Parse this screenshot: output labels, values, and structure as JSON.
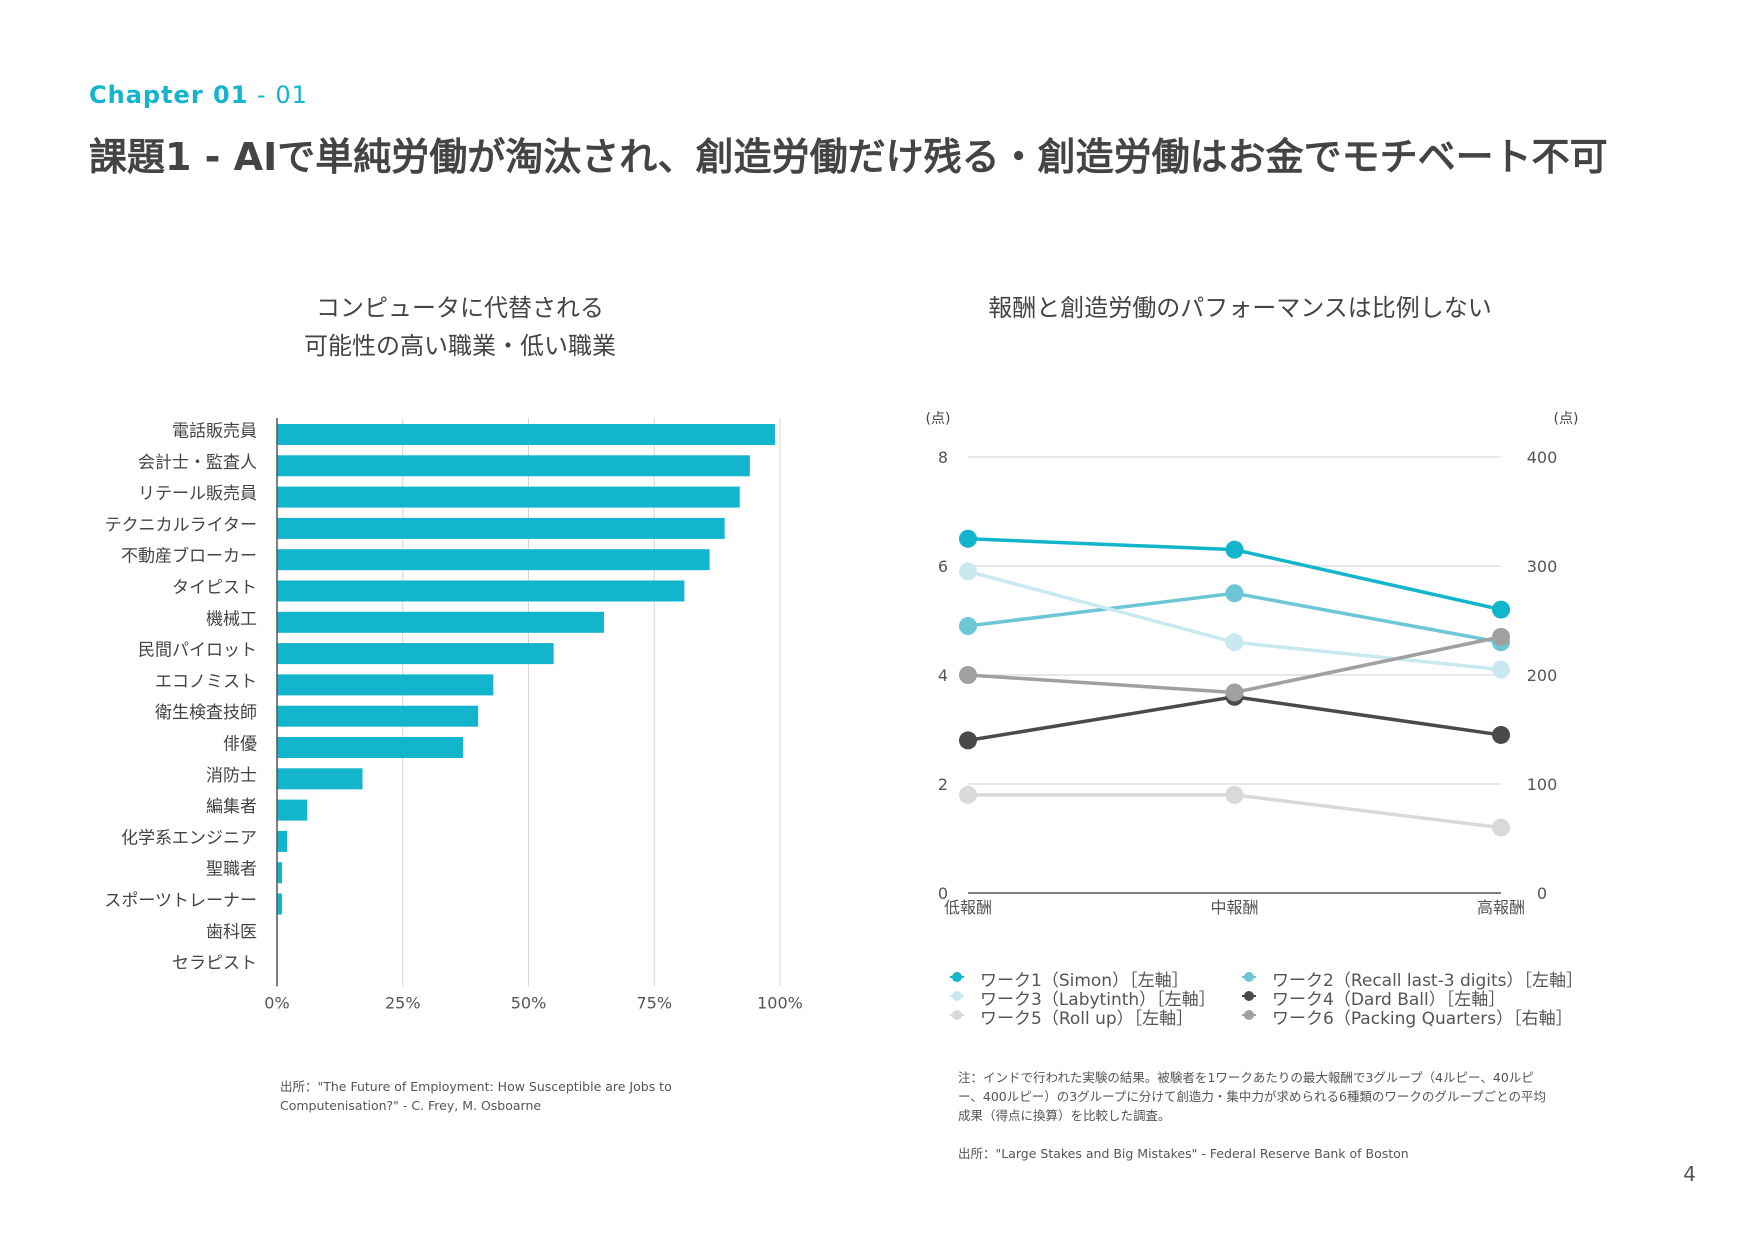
{
  "header": {
    "chapter": "Chapter 01",
    "section": " - 01",
    "title": "課題1 - AIで単純労働が淘汰され、創造労働だけ残る・創造労働はお金でモチベート不可"
  },
  "page_number": "4",
  "colors": {
    "accent": "#12b5cb",
    "bar": "#12b5cb",
    "series": [
      "#12b5cb",
      "#6cc6d6",
      "#c7e9ef",
      "#4a4a4a",
      "#d9d9d9",
      "#a0a0a0"
    ]
  },
  "left_chart": {
    "title_line1": "コンピュータに代替される",
    "title_line2": "可能性の高い職業・低い職業",
    "source": "出所：\"The Future of Employment: How Susceptible are Jobs to Computenisation?\" - C. Frey, M. Osboarne"
  },
  "right_chart": {
    "title": "報酬と創造労働のパフォーマンスは比例しない",
    "note": "注：インドで行われた実験の結果。被験者を1ワークあたりの最大報酬で3グループ（4ルピー、40ルピー、400ルピー）の3グループに分けて創造力・集中力が求められる6種類のワークのグループごとの平均成果（得点に換算）を比較した調査。",
    "source": "出所：\"Large Stakes and Big Mistakes\" - Federal Reserve Bank of Boston",
    "left_unit": "(点)",
    "right_unit": "(点)"
  },
  "chart_data": [
    {
      "type": "bar",
      "orientation": "horizontal",
      "title": "コンピュータに代替される 可能性の高い職業・低い職業",
      "categories": [
        "電話販売員",
        "会計士・監査人",
        "リテール販売員",
        "テクニカルライター",
        "不動産ブローカー",
        "タイピスト",
        "機械工",
        "民間パイロット",
        "エコノミスト",
        "衛生検査技師",
        "俳優",
        "消防士",
        "編集者",
        "化学系エンジニア",
        "聖職者",
        "スポーツトレーナー",
        "歯科医",
        "セラピスト"
      ],
      "values": [
        99,
        94,
        92,
        89,
        86,
        81,
        65,
        55,
        43,
        40,
        37,
        17,
        6,
        2,
        1,
        1,
        0,
        0
      ],
      "xlim": [
        0,
        100
      ],
      "xticks": [
        "0%",
        "25%",
        "50%",
        "75%",
        "100%"
      ],
      "xtick_values": [
        0,
        25,
        50,
        75,
        100
      ],
      "grid": true
    },
    {
      "type": "line",
      "title": "報酬と創造労働のパフォーマンスは比例しない",
      "categories": [
        "低報酬",
        "中報酬",
        "高報酬"
      ],
      "ylim_left": [
        0,
        8
      ],
      "ylim_right": [
        0,
        400
      ],
      "yticks_left": [
        "0",
        "2",
        "4",
        "6",
        "8"
      ],
      "yticks_right": [
        "0",
        "100",
        "200",
        "300",
        "400"
      ],
      "ylabel_left": "(点)",
      "ylabel_right": "(点)",
      "legend_position": "bottom",
      "grid": true,
      "series": [
        {
          "name": "ワーク1（Simon）［左軸］",
          "axis": "left",
          "values": [
            6.5,
            6.3,
            5.2
          ],
          "color": "#12b5cb"
        },
        {
          "name": "ワーク2（Recall last-3 digits）［左軸］",
          "axis": "left",
          "values": [
            4.9,
            5.5,
            4.6
          ],
          "color": "#6cc6d6"
        },
        {
          "name": "ワーク3（Labytinth）［左軸］",
          "axis": "left",
          "values": [
            5.9,
            4.6,
            4.1
          ],
          "color": "#c7e9ef"
        },
        {
          "name": "ワーク4（Dard Ball）［左軸］",
          "axis": "left",
          "values": [
            2.8,
            3.6,
            2.9
          ],
          "color": "#4a4a4a"
        },
        {
          "name": "ワーク5（Roll up）［左軸］",
          "axis": "left",
          "values": [
            1.8,
            1.8,
            1.2
          ],
          "color": "#d9d9d9"
        },
        {
          "name": "ワーク6（Packing Quarters）［右軸］",
          "axis": "right",
          "values": [
            200,
            184,
            235
          ],
          "color": "#a0a0a0"
        }
      ]
    }
  ]
}
